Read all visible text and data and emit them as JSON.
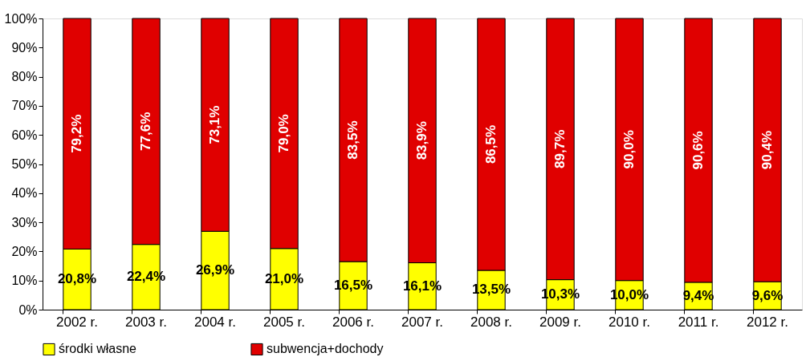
{
  "chart_data": {
    "type": "bar",
    "stacked": true,
    "categories": [
      "2002 r.",
      "2003 r.",
      "2004 r.",
      "2005 r.",
      "2006 r.",
      "2007 r.",
      "2008 r.",
      "2009 r.",
      "2010 r.",
      "2011 r.",
      "2012 r."
    ],
    "series": [
      {
        "name": "środki własne",
        "color": "#ffff00",
        "values": [
          20.8,
          22.4,
          26.9,
          21.0,
          16.5,
          16.1,
          13.5,
          10.3,
          10.0,
          9.4,
          9.6
        ],
        "value_labels": [
          "20,8%",
          "22,4%",
          "26,9%",
          "21,0%",
          "16,5%",
          "16,1%",
          "13,5%",
          "10,3%",
          "10,0%",
          "9,4%",
          "9,6%"
        ]
      },
      {
        "name": "subwencja+dochody",
        "color": "#e00000",
        "values": [
          79.2,
          77.6,
          73.1,
          79.0,
          83.5,
          83.9,
          86.5,
          89.7,
          90.0,
          90.6,
          90.4
        ],
        "value_labels": [
          "79,2%",
          "77,6%",
          "73,1%",
          "79,0%",
          "83,5%",
          "83,9%",
          "86,5%",
          "89,7%",
          "90,0%",
          "90,6%",
          "90,4%"
        ]
      }
    ],
    "ylim": [
      0,
      100
    ],
    "yticks": [
      {
        "value": 0,
        "label": "0%"
      },
      {
        "value": 10,
        "label": "10%"
      },
      {
        "value": 20,
        "label": "20%"
      },
      {
        "value": 30,
        "label": "30%"
      },
      {
        "value": 40,
        "label": "40%"
      },
      {
        "value": 50,
        "label": "50%"
      },
      {
        "value": 60,
        "label": "60%"
      },
      {
        "value": 70,
        "label": "70%"
      },
      {
        "value": 80,
        "label": "80%"
      },
      {
        "value": 90,
        "label": "90%"
      },
      {
        "value": 100,
        "label": "100%"
      }
    ],
    "grid": false,
    "legend": "bottom"
  }
}
